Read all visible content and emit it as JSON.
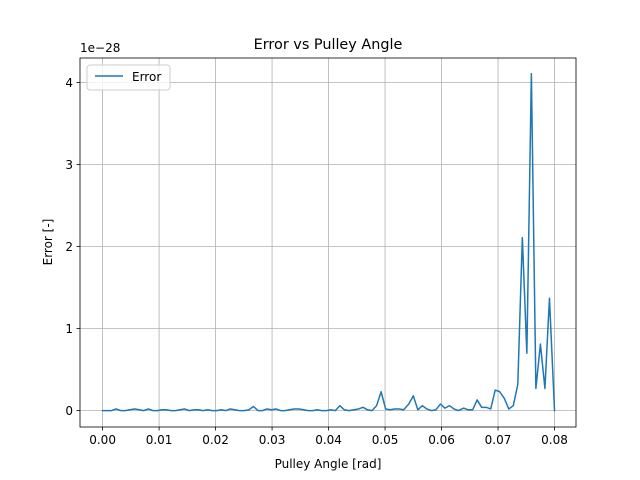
{
  "chart_data": {
    "type": "line",
    "title": "Error vs Pulley Angle",
    "xlabel": "Pulley Angle [rad]",
    "ylabel": "Error [-]",
    "y_offset_label": "1e−28",
    "xlim": [
      -0.004,
      0.0838
    ],
    "ylim": [
      -0.2,
      4.3
    ],
    "xticks": [
      0.0,
      0.01,
      0.02,
      0.03,
      0.04,
      0.05,
      0.06,
      0.07,
      0.08
    ],
    "xtick_labels": [
      "0.00",
      "0.01",
      "0.02",
      "0.03",
      "0.04",
      "0.05",
      "0.06",
      "0.07",
      "0.08"
    ],
    "yticks": [
      0,
      1,
      2,
      3,
      4
    ],
    "ytick_labels": [
      "0",
      "1",
      "2",
      "3",
      "4"
    ],
    "grid": true,
    "legend": {
      "placement": "top-left"
    },
    "line_color": "#1f77b4",
    "series": [
      {
        "name": "Error",
        "x": [
          0.0,
          0.0008,
          0.0016,
          0.0024,
          0.0032,
          0.004,
          0.0048,
          0.0057,
          0.0065,
          0.0073,
          0.0081,
          0.0089,
          0.0097,
          0.0105,
          0.0113,
          0.0121,
          0.0129,
          0.0137,
          0.0145,
          0.0154,
          0.0162,
          0.017,
          0.0178,
          0.0186,
          0.0194,
          0.0202,
          0.021,
          0.0218,
          0.0226,
          0.0234,
          0.0242,
          0.0251,
          0.0259,
          0.0267,
          0.0275,
          0.0283,
          0.0291,
          0.0299,
          0.0307,
          0.0315,
          0.0323,
          0.0331,
          0.0339,
          0.0348,
          0.0356,
          0.0364,
          0.0372,
          0.038,
          0.0388,
          0.0396,
          0.0404,
          0.0412,
          0.042,
          0.0428,
          0.0436,
          0.0445,
          0.0453,
          0.0461,
          0.0469,
          0.0477,
          0.0485,
          0.0493,
          0.0501,
          0.0509,
          0.0517,
          0.0525,
          0.0533,
          0.0542,
          0.055,
          0.0558,
          0.0566,
          0.0574,
          0.0582,
          0.059,
          0.0598,
          0.0606,
          0.0614,
          0.0622,
          0.063,
          0.0639,
          0.0647,
          0.0655,
          0.0663,
          0.0671,
          0.0679,
          0.0687,
          0.0695,
          0.0703,
          0.0711,
          0.0719,
          0.0727,
          0.0735,
          0.0743,
          0.0751,
          0.0759,
          0.0767,
          0.0775,
          0.0783,
          0.0791,
          0.08
        ],
        "y": [
          0.0,
          0.0,
          0.0,
          0.02,
          0.0,
          0.0,
          0.01,
          0.02,
          0.01,
          0.0,
          0.02,
          0.0,
          0.0,
          0.01,
          0.01,
          0.0,
          0.0,
          0.01,
          0.02,
          0.0,
          0.01,
          0.01,
          0.0,
          0.01,
          0.0,
          0.0,
          0.01,
          0.0,
          0.02,
          0.01,
          0.0,
          0.0,
          0.01,
          0.05,
          0.0,
          0.0,
          0.02,
          0.01,
          0.02,
          0.0,
          0.0,
          0.01,
          0.02,
          0.02,
          0.01,
          0.0,
          0.0,
          0.01,
          0.0,
          0.0,
          0.01,
          0.0,
          0.06,
          0.01,
          0.0,
          0.01,
          0.02,
          0.04,
          0.01,
          0.0,
          0.06,
          0.23,
          0.02,
          0.01,
          0.02,
          0.02,
          0.01,
          0.08,
          0.18,
          0.01,
          0.06,
          0.02,
          0.0,
          0.01,
          0.08,
          0.03,
          0.06,
          0.02,
          0.0,
          0.03,
          0.01,
          0.01,
          0.13,
          0.04,
          0.04,
          0.02,
          0.25,
          0.23,
          0.15,
          0.02,
          0.06,
          0.32,
          2.11,
          0.7,
          4.11,
          0.27,
          0.81,
          0.27,
          1.37,
          0.0
        ]
      }
    ]
  }
}
